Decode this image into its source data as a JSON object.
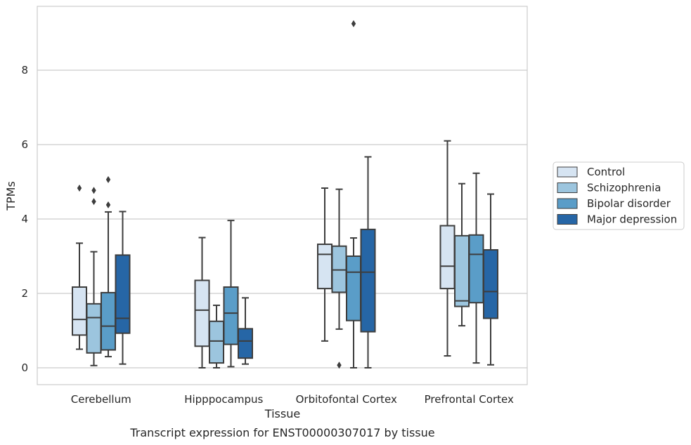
{
  "chart_data": {
    "type": "box",
    "caption": "Transcript expression for ENST00000307017 by tissue",
    "xlabel": "Tissue",
    "ylabel": "TPMs",
    "ylim": [
      -0.45,
      9.7
    ],
    "yticks": [
      0,
      2,
      4,
      6,
      8
    ],
    "grid": true,
    "legend_position": "right",
    "categories": [
      "Cerebellum",
      "Hipppocampus",
      "Orbitofontal Cortex",
      "Prefrontal Cortex"
    ],
    "series": [
      {
        "name": "Control",
        "color": "#d6e4f2",
        "boxes": [
          {
            "whisker_low": 0.5,
            "q1": 0.88,
            "median": 1.3,
            "q3": 2.17,
            "whisker_high": 3.35,
            "outliers": [
              4.83
            ]
          },
          {
            "whisker_low": 0.0,
            "q1": 0.58,
            "median": 1.55,
            "q3": 2.35,
            "whisker_high": 3.5,
            "outliers": []
          },
          {
            "whisker_low": 0.72,
            "q1": 2.13,
            "median": 3.05,
            "q3": 3.32,
            "whisker_high": 4.83,
            "outliers": []
          },
          {
            "whisker_low": 0.32,
            "q1": 2.13,
            "median": 2.73,
            "q3": 3.82,
            "whisker_high": 6.1,
            "outliers": []
          }
        ]
      },
      {
        "name": "Schizophrenia",
        "color": "#9cc5de",
        "boxes": [
          {
            "whisker_low": 0.06,
            "q1": 0.4,
            "median": 1.35,
            "q3": 1.72,
            "whisker_high": 3.12,
            "outliers": [
              4.77,
              4.47
            ]
          },
          {
            "whisker_low": 0.0,
            "q1": 0.13,
            "median": 0.72,
            "q3": 1.25,
            "whisker_high": 1.68,
            "outliers": []
          },
          {
            "whisker_low": 1.04,
            "q1": 2.03,
            "median": 2.63,
            "q3": 3.27,
            "whisker_high": 4.8,
            "outliers": [
              0.07
            ]
          },
          {
            "whisker_low": 1.13,
            "q1": 1.65,
            "median": 1.8,
            "q3": 3.55,
            "whisker_high": 4.95,
            "outliers": []
          }
        ]
      },
      {
        "name": "Bipolar disorder",
        "color": "#5a9dc8",
        "boxes": [
          {
            "whisker_low": 0.3,
            "q1": 0.48,
            "median": 1.12,
            "q3": 2.02,
            "whisker_high": 4.19,
            "outliers": [
              5.06,
              4.38
            ]
          },
          {
            "whisker_low": 0.03,
            "q1": 0.63,
            "median": 1.47,
            "q3": 2.17,
            "whisker_high": 3.96,
            "outliers": []
          },
          {
            "whisker_low": 0.0,
            "q1": 1.27,
            "median": 2.57,
            "q3": 3.0,
            "whisker_high": 3.49,
            "outliers": [
              9.25
            ]
          },
          {
            "whisker_low": 0.13,
            "q1": 1.75,
            "median": 3.05,
            "q3": 3.57,
            "whisker_high": 5.23,
            "outliers": []
          }
        ]
      },
      {
        "name": "Major depression",
        "color": "#2666a6",
        "boxes": [
          {
            "whisker_low": 0.1,
            "q1": 0.93,
            "median": 1.33,
            "q3": 3.03,
            "whisker_high": 4.2,
            "outliers": []
          },
          {
            "whisker_low": 0.1,
            "q1": 0.26,
            "median": 0.72,
            "q3": 1.05,
            "whisker_high": 1.88,
            "outliers": []
          },
          {
            "whisker_low": 0.0,
            "q1": 0.97,
            "median": 2.57,
            "q3": 3.72,
            "whisker_high": 5.67,
            "outliers": []
          },
          {
            "whisker_low": 0.08,
            "q1": 1.33,
            "median": 2.05,
            "q3": 3.17,
            "whisker_high": 4.67,
            "outliers": []
          }
        ]
      }
    ]
  }
}
